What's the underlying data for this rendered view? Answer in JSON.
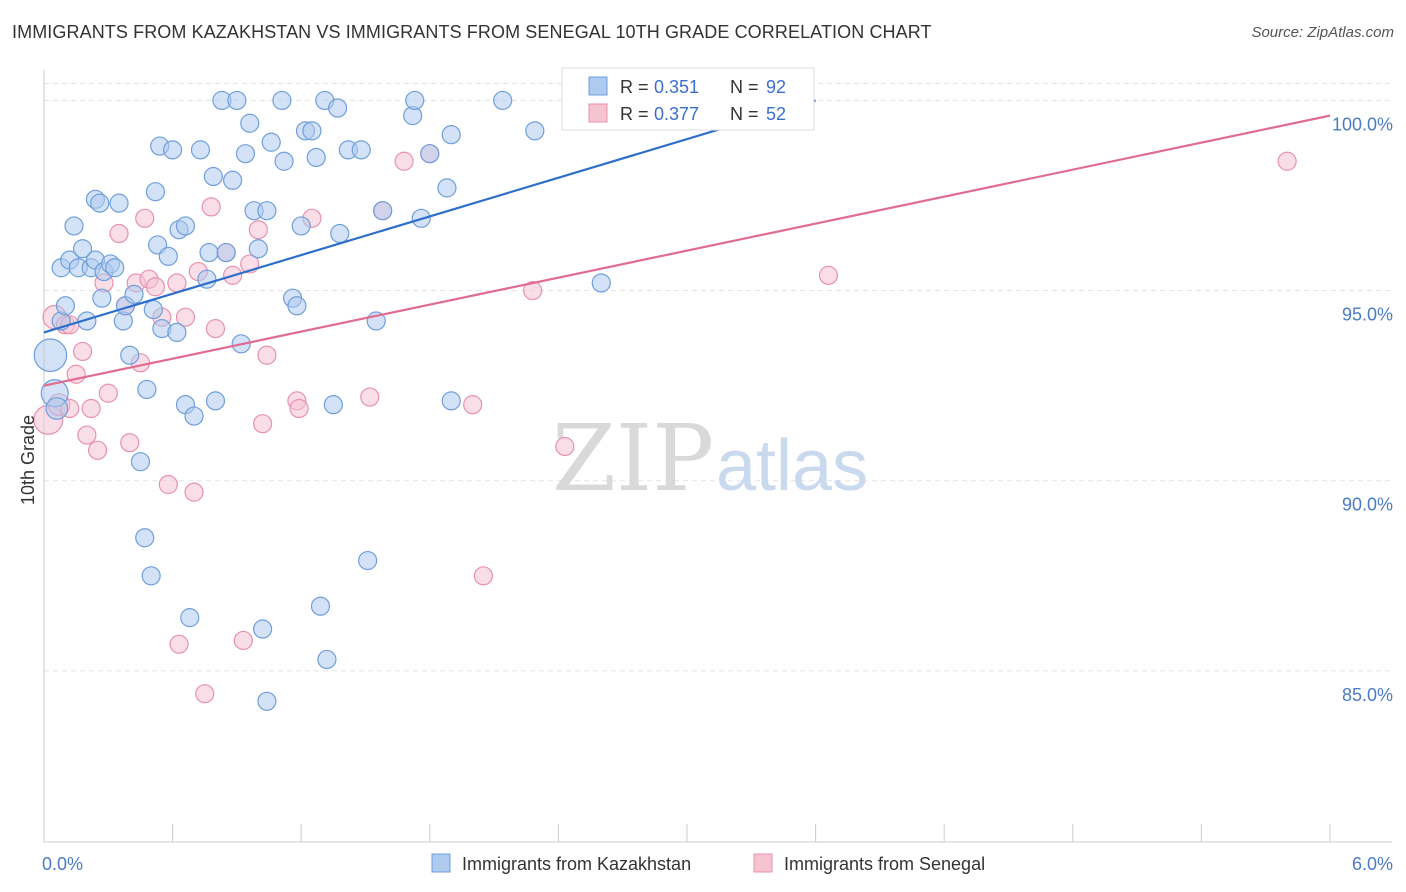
{
  "title": "IMMIGRANTS FROM KAZAKHSTAN VS IMMIGRANTS FROM SENEGAL 10TH GRADE CORRELATION CHART",
  "source": "Source: ZipAtlas.com",
  "watermark": {
    "zip": "ZIP",
    "atlas": "atlas"
  },
  "colors": {
    "blue_fill": "#aecbef",
    "blue_stroke": "#6f9fdc",
    "blue_line": "#2f6fcc",
    "pink_fill": "#f6c3d3",
    "pink_stroke": "#e891ae",
    "pink_line": "#e06b93",
    "tick_text": "#4a7cc4",
    "grid": "#e3e3e3"
  },
  "legend_box": {
    "rows": [
      {
        "r_label": "R = ",
        "r_value": "0.351",
        "n_label": "N = ",
        "n_value": "92",
        "color": "blue"
      },
      {
        "r_label": "R = ",
        "r_value": "0.377",
        "n_label": "N = ",
        "n_value": "52",
        "color": "pink"
      }
    ]
  },
  "chart_data": {
    "type": "scatter",
    "title": "IMMIGRANTS FROM KAZAKHSTAN VS IMMIGRANTS FROM SENEGAL 10TH GRADE CORRELATION CHART",
    "xlabel": "",
    "ylabel": "10th Grade",
    "xlim": [
      0,
      6
    ],
    "ylim": [
      80.5,
      100.8
    ],
    "x_ticks": [
      {
        "value": 0,
        "label": "0.0%"
      },
      {
        "value": 6,
        "label": "6.0%"
      }
    ],
    "x_minor_ticks": [
      0.6,
      1.2,
      1.8,
      2.4,
      3.0,
      3.6,
      4.2,
      4.8,
      5.4
    ],
    "y_ticks": [
      {
        "value": 85,
        "label": "85.0%"
      },
      {
        "value": 90,
        "label": "90.0%"
      },
      {
        "value": 95,
        "label": "95.0%"
      },
      {
        "value": 100,
        "label": "100.0%"
      }
    ],
    "grid": true,
    "legend_position": "bottom",
    "series": [
      {
        "name": "Immigrants from Kazakhstan",
        "color": "blue",
        "trend": {
          "x": [
            0,
            3.6
          ],
          "y": [
            93.9,
            100.0
          ]
        },
        "points": [
          [
            0.03,
            93.3,
            1.8
          ],
          [
            0.05,
            92.3,
            1.5
          ],
          [
            0.06,
            91.9,
            1.2
          ],
          [
            0.08,
            94.2,
            1.0
          ],
          [
            0.1,
            94.6,
            1.0
          ],
          [
            0.08,
            95.6,
            1.0
          ],
          [
            0.12,
            95.8,
            1.0
          ],
          [
            0.14,
            96.7,
            1.0
          ],
          [
            0.16,
            95.6,
            1.0
          ],
          [
            0.18,
            96.1,
            1.0
          ],
          [
            0.2,
            94.2,
            1.0
          ],
          [
            0.22,
            95.6,
            1.0
          ],
          [
            0.24,
            95.8,
            1.0
          ],
          [
            0.24,
            97.4,
            1.0
          ],
          [
            0.26,
            97.3,
            1.0
          ],
          [
            0.27,
            94.8,
            1.0
          ],
          [
            0.28,
            95.5,
            1.0
          ],
          [
            0.31,
            95.7,
            1.0
          ],
          [
            0.33,
            95.6,
            1.0
          ],
          [
            0.35,
            97.3,
            1.0
          ],
          [
            0.37,
            94.2,
            1.0
          ],
          [
            0.38,
            94.6,
            1.0
          ],
          [
            0.4,
            93.3,
            1.0
          ],
          [
            0.42,
            94.9,
            1.0
          ],
          [
            0.45,
            90.5,
            1.0
          ],
          [
            0.47,
            88.5,
            1.0
          ],
          [
            0.48,
            92.4,
            1.0
          ],
          [
            0.5,
            87.5,
            1.0
          ],
          [
            0.51,
            94.5,
            1.0
          ],
          [
            0.52,
            97.6,
            1.0
          ],
          [
            0.53,
            96.2,
            1.0
          ],
          [
            0.54,
            98.8,
            1.0
          ],
          [
            0.55,
            94.0,
            1.0
          ],
          [
            0.58,
            95.9,
            1.0
          ],
          [
            0.6,
            98.7,
            1.0
          ],
          [
            0.62,
            93.9,
            1.0
          ],
          [
            0.63,
            96.6,
            1.0
          ],
          [
            0.66,
            96.7,
            1.0
          ],
          [
            0.66,
            92.0,
            1.0
          ],
          [
            0.68,
            86.4,
            1.0
          ],
          [
            0.7,
            91.7,
            1.0
          ],
          [
            0.73,
            98.7,
            1.0
          ],
          [
            0.76,
            95.3,
            1.0
          ],
          [
            0.77,
            96.0,
            1.0
          ],
          [
            0.79,
            98.0,
            1.0
          ],
          [
            0.8,
            92.1,
            1.0
          ],
          [
            0.83,
            100.0,
            1.0
          ],
          [
            0.85,
            96.0,
            1.0
          ],
          [
            0.88,
            97.9,
            1.0
          ],
          [
            0.92,
            93.6,
            1.0
          ],
          [
            0.94,
            98.6,
            1.0
          ],
          [
            0.96,
            99.4,
            1.0
          ],
          [
            0.98,
            97.1,
            1.0
          ],
          [
            1.0,
            96.1,
            1.0
          ],
          [
            1.02,
            86.1,
            1.0
          ],
          [
            1.04,
            84.2,
            1.0
          ],
          [
            1.04,
            97.1,
            1.0
          ],
          [
            1.06,
            98.9,
            1.0
          ],
          [
            1.11,
            100.0,
            1.0
          ],
          [
            1.12,
            98.4,
            1.0
          ],
          [
            1.16,
            94.8,
            1.0
          ],
          [
            1.18,
            94.6,
            1.0
          ],
          [
            1.2,
            96.7,
            1.0
          ],
          [
            1.22,
            99.2,
            1.0
          ],
          [
            1.25,
            99.2,
            1.0
          ],
          [
            1.27,
            98.5,
            1.0
          ],
          [
            1.29,
            86.7,
            1.0
          ],
          [
            1.31,
            100.0,
            1.0
          ],
          [
            1.32,
            85.3,
            1.0
          ],
          [
            1.35,
            92.0,
            1.0
          ],
          [
            1.37,
            99.8,
            1.0
          ],
          [
            1.38,
            96.5,
            1.0
          ],
          [
            1.42,
            98.7,
            1.0
          ],
          [
            1.48,
            98.7,
            1.0
          ],
          [
            1.51,
            87.9,
            1.0
          ],
          [
            1.55,
            94.2,
            1.0
          ],
          [
            1.58,
            97.1,
            1.0
          ],
          [
            1.72,
            99.6,
            1.0
          ],
          [
            1.73,
            100.0,
            1.0
          ],
          [
            1.76,
            96.9,
            1.0
          ],
          [
            1.8,
            98.6,
            1.0
          ],
          [
            1.9,
            92.1,
            1.0
          ],
          [
            1.88,
            97.7,
            1.0
          ],
          [
            2.14,
            100.0,
            1.0
          ],
          [
            2.29,
            99.2,
            1.0
          ],
          [
            2.6,
            95.2,
            1.0
          ],
          [
            2.7,
            100.0,
            1.0
          ],
          [
            3.1,
            99.8,
            1.0
          ],
          [
            3.2,
            100.0,
            1.0
          ],
          [
            3.35,
            100.0,
            1.0
          ],
          [
            0.9,
            100.0,
            1.0
          ],
          [
            1.9,
            99.1,
            1.0
          ]
        ]
      },
      {
        "name": "Immigrants from Senegal",
        "color": "pink",
        "trend": {
          "x": [
            0,
            6
          ],
          "y": [
            92.5,
            99.6
          ]
        },
        "points": [
          [
            0.02,
            91.6,
            1.6
          ],
          [
            0.05,
            94.3,
            1.3
          ],
          [
            0.07,
            92.0,
            1.2
          ],
          [
            0.1,
            94.1,
            1.0
          ],
          [
            0.12,
            91.9,
            1.0
          ],
          [
            0.15,
            92.8,
            1.0
          ],
          [
            0.18,
            93.4,
            1.0
          ],
          [
            0.2,
            91.2,
            1.0
          ],
          [
            0.22,
            91.9,
            1.0
          ],
          [
            0.25,
            90.8,
            1.0
          ],
          [
            0.3,
            92.3,
            1.0
          ],
          [
            0.35,
            96.5,
            1.0
          ],
          [
            0.38,
            94.6,
            1.0
          ],
          [
            0.4,
            91.0,
            1.0
          ],
          [
            0.43,
            95.2,
            1.0
          ],
          [
            0.47,
            96.9,
            1.0
          ],
          [
            0.49,
            95.3,
            1.0
          ],
          [
            0.52,
            95.1,
            1.0
          ],
          [
            0.55,
            94.3,
            1.0
          ],
          [
            0.58,
            89.9,
            1.0
          ],
          [
            0.62,
            95.2,
            1.0
          ],
          [
            0.63,
            85.7,
            1.0
          ],
          [
            0.66,
            94.3,
            1.0
          ],
          [
            0.7,
            89.7,
            1.0
          ],
          [
            0.72,
            95.5,
            1.0
          ],
          [
            0.75,
            84.4,
            1.0
          ],
          [
            0.78,
            97.2,
            1.0
          ],
          [
            0.8,
            94.0,
            1.0
          ],
          [
            0.85,
            96.0,
            1.0
          ],
          [
            0.88,
            95.4,
            1.0
          ],
          [
            0.93,
            85.8,
            1.0
          ],
          [
            0.96,
            95.7,
            1.0
          ],
          [
            1.0,
            96.6,
            1.0
          ],
          [
            1.02,
            91.5,
            1.0
          ],
          [
            1.04,
            93.3,
            1.0
          ],
          [
            1.18,
            92.1,
            1.0
          ],
          [
            1.19,
            91.9,
            1.0
          ],
          [
            1.25,
            96.9,
            1.0
          ],
          [
            1.52,
            92.2,
            1.0
          ],
          [
            1.58,
            97.1,
            1.0
          ],
          [
            1.68,
            98.4,
            1.0
          ],
          [
            1.8,
            98.6,
            1.0
          ],
          [
            2.0,
            92.0,
            1.0
          ],
          [
            2.05,
            87.5,
            1.0
          ],
          [
            2.28,
            95.0,
            1.0
          ],
          [
            2.43,
            90.9,
            1.0
          ],
          [
            3.55,
            99.5,
            1.0
          ],
          [
            3.66,
            95.4,
            1.0
          ],
          [
            5.8,
            98.4,
            1.0
          ],
          [
            0.12,
            94.1,
            1.0
          ],
          [
            0.45,
            93.1,
            1.0
          ],
          [
            0.28,
            95.2,
            1.0
          ]
        ]
      }
    ]
  }
}
